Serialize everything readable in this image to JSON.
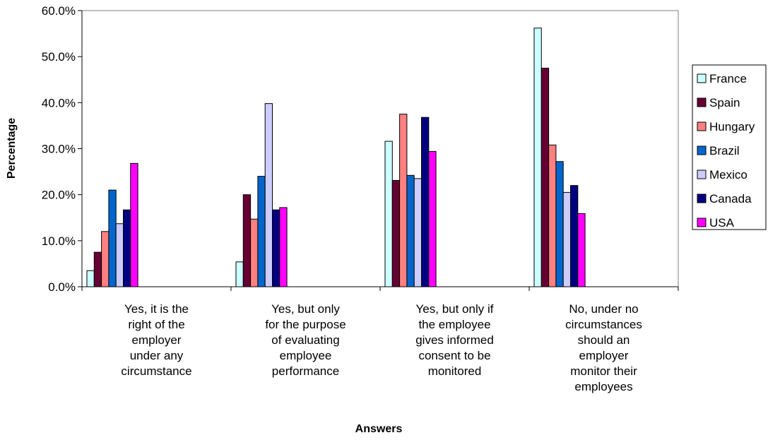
{
  "chart_data": {
    "type": "bar",
    "xlabel": "Answers",
    "ylabel": "Percentage",
    "ylim": [
      0,
      60
    ],
    "yticks": [
      "0.0%",
      "10.0%",
      "20.0%",
      "30.0%",
      "40.0%",
      "50.0%",
      "60.0%"
    ],
    "grid": false,
    "legend_position": "right",
    "categories": [
      [
        "Yes, it is the",
        "right of the",
        "employer",
        "under any",
        "circumstance"
      ],
      [
        "Yes, but only",
        "for the purpose",
        "of evaluating",
        "employee",
        "performance"
      ],
      [
        "Yes, but only if",
        "the employee",
        "gives informed",
        "consent to be",
        "monitored"
      ],
      [
        "No, under no",
        "circumstances",
        "should an",
        "employer",
        "monitor their",
        "employees"
      ]
    ],
    "series": [
      {
        "name": "France",
        "color": "#ccffff",
        "values": [
          3.5,
          5.4,
          31.6,
          56.2
        ]
      },
      {
        "name": "Spain",
        "color": "#660033",
        "values": [
          7.5,
          20.0,
          23.1,
          47.5
        ]
      },
      {
        "name": "Hungary",
        "color": "#ff8080",
        "values": [
          12.0,
          14.7,
          37.5,
          30.8
        ]
      },
      {
        "name": "Brazil",
        "color": "#0066cc",
        "values": [
          21.0,
          24.0,
          24.2,
          27.2
        ]
      },
      {
        "name": "Mexico",
        "color": "#ccccff",
        "values": [
          13.7,
          39.8,
          23.5,
          20.5
        ]
      },
      {
        "name": "Canada",
        "color": "#000080",
        "values": [
          16.7,
          16.7,
          36.8,
          22.0
        ]
      },
      {
        "name": "USA",
        "color": "#ff00ff",
        "values": [
          26.8,
          17.2,
          29.4,
          15.9
        ]
      }
    ]
  }
}
